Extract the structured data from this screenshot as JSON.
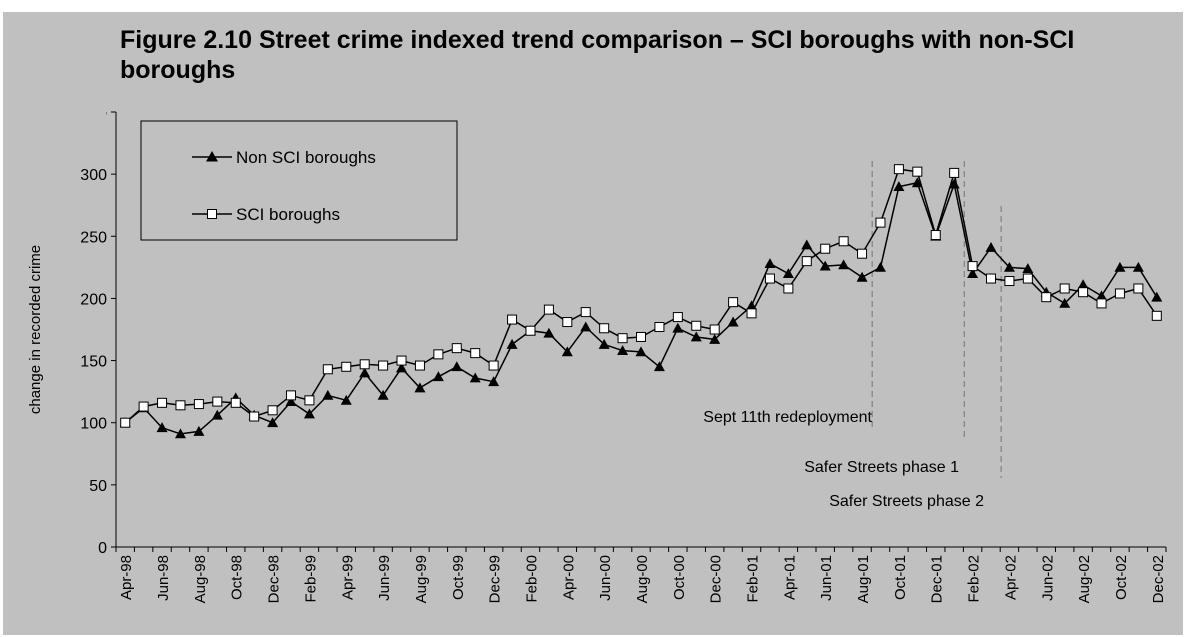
{
  "figure_title": "Figure 2.10 Street crime indexed trend comparison – SCI boroughs with non-SCI boroughs",
  "colors": {
    "background": "#c0c0c0",
    "line": "#000000",
    "marker_fill_sci": "#ffffff",
    "guide": "#808080"
  },
  "chart_data": {
    "type": "line",
    "title": "Figure 2.10 Street crime indexed trend comparison – SCI boroughs with non-SCI boroughs",
    "xlabel": "",
    "ylabel": "change in recorded crime",
    "ylim": [
      0,
      350
    ],
    "yticks": [
      0,
      50,
      100,
      150,
      200,
      250,
      300,
      350
    ],
    "grid": false,
    "legend_position": "top-left",
    "x": [
      "Apr-98",
      "May-98",
      "Jun-98",
      "Jul-98",
      "Aug-98",
      "Sep-98",
      "Oct-98",
      "Nov-98",
      "Dec-98",
      "Jan-99",
      "Feb-99",
      "Mar-99",
      "Apr-99",
      "May-99",
      "Jun-99",
      "Jul-99",
      "Aug-99",
      "Sep-99",
      "Oct-99",
      "Nov-99",
      "Dec-99",
      "Jan-00",
      "Feb-00",
      "Mar-00",
      "Apr-00",
      "May-00",
      "Jun-00",
      "Jul-00",
      "Aug-00",
      "Sep-00",
      "Oct-00",
      "Nov-00",
      "Dec-00",
      "Jan-01",
      "Feb-01",
      "Mar-01",
      "Apr-01",
      "May-01",
      "Jun-01",
      "Jul-01",
      "Aug-01",
      "Sep-01",
      "Oct-01",
      "Nov-01",
      "Dec-01",
      "Jan-02",
      "Feb-02",
      "Mar-02",
      "Apr-02",
      "May-02",
      "Jun-02",
      "Jul-02",
      "Aug-02",
      "Sep-02",
      "Oct-02",
      "Nov-02",
      "Dec-02"
    ],
    "xtick_labels": [
      "Apr-98",
      "Jun-98",
      "Aug-98",
      "Oct-98",
      "Dec-98",
      "Feb-99",
      "Apr-99",
      "Jun-99",
      "Aug-99",
      "Oct-99",
      "Dec-99",
      "Feb-00",
      "Apr-00",
      "Jun-00",
      "Aug-00",
      "Oct-00",
      "Dec-00",
      "Feb-01",
      "Apr-01",
      "Jun-01",
      "Aug-01",
      "Oct-01",
      "Dec-01",
      "Feb-02",
      "Apr-02",
      "Jun-02",
      "Aug-02",
      "Oct-02",
      "Dec-02"
    ],
    "series": [
      {
        "name": "Non SCI boroughs",
        "marker": "triangle",
        "values": [
          100,
          112,
          96,
          91,
          93,
          106,
          120,
          106,
          100,
          117,
          107,
          122,
          118,
          140,
          122,
          144,
          128,
          137,
          145,
          136,
          133,
          163,
          174,
          172,
          157,
          177,
          163,
          158,
          157,
          145,
          176,
          169,
          167,
          181,
          194,
          228,
          220,
          243,
          226,
          227,
          217,
          225,
          290,
          293,
          250,
          292,
          220,
          241,
          225,
          224,
          205,
          196,
          211,
          202,
          225,
          225,
          201
        ]
      },
      {
        "name": "SCI boroughs",
        "marker": "square",
        "values": [
          100,
          113,
          116,
          114,
          115,
          117,
          116,
          105,
          110,
          122,
          118,
          143,
          145,
          147,
          146,
          150,
          146,
          155,
          160,
          156,
          146,
          183,
          174,
          191,
          181,
          189,
          176,
          168,
          169,
          177,
          185,
          178,
          175,
          197,
          188,
          216,
          208,
          230,
          240,
          246,
          236,
          261,
          304,
          302,
          251,
          301,
          226,
          216,
          214,
          216,
          201,
          208,
          205,
          196,
          204,
          208,
          186
        ]
      }
    ],
    "annotations": [
      {
        "text": "Sept 11th redeployment",
        "at": "Sep-01"
      },
      {
        "text": "Safer Streets phase 1",
        "at": "Feb-02"
      },
      {
        "text": "Safer Streets phase 2",
        "at": "Apr-02"
      }
    ]
  }
}
